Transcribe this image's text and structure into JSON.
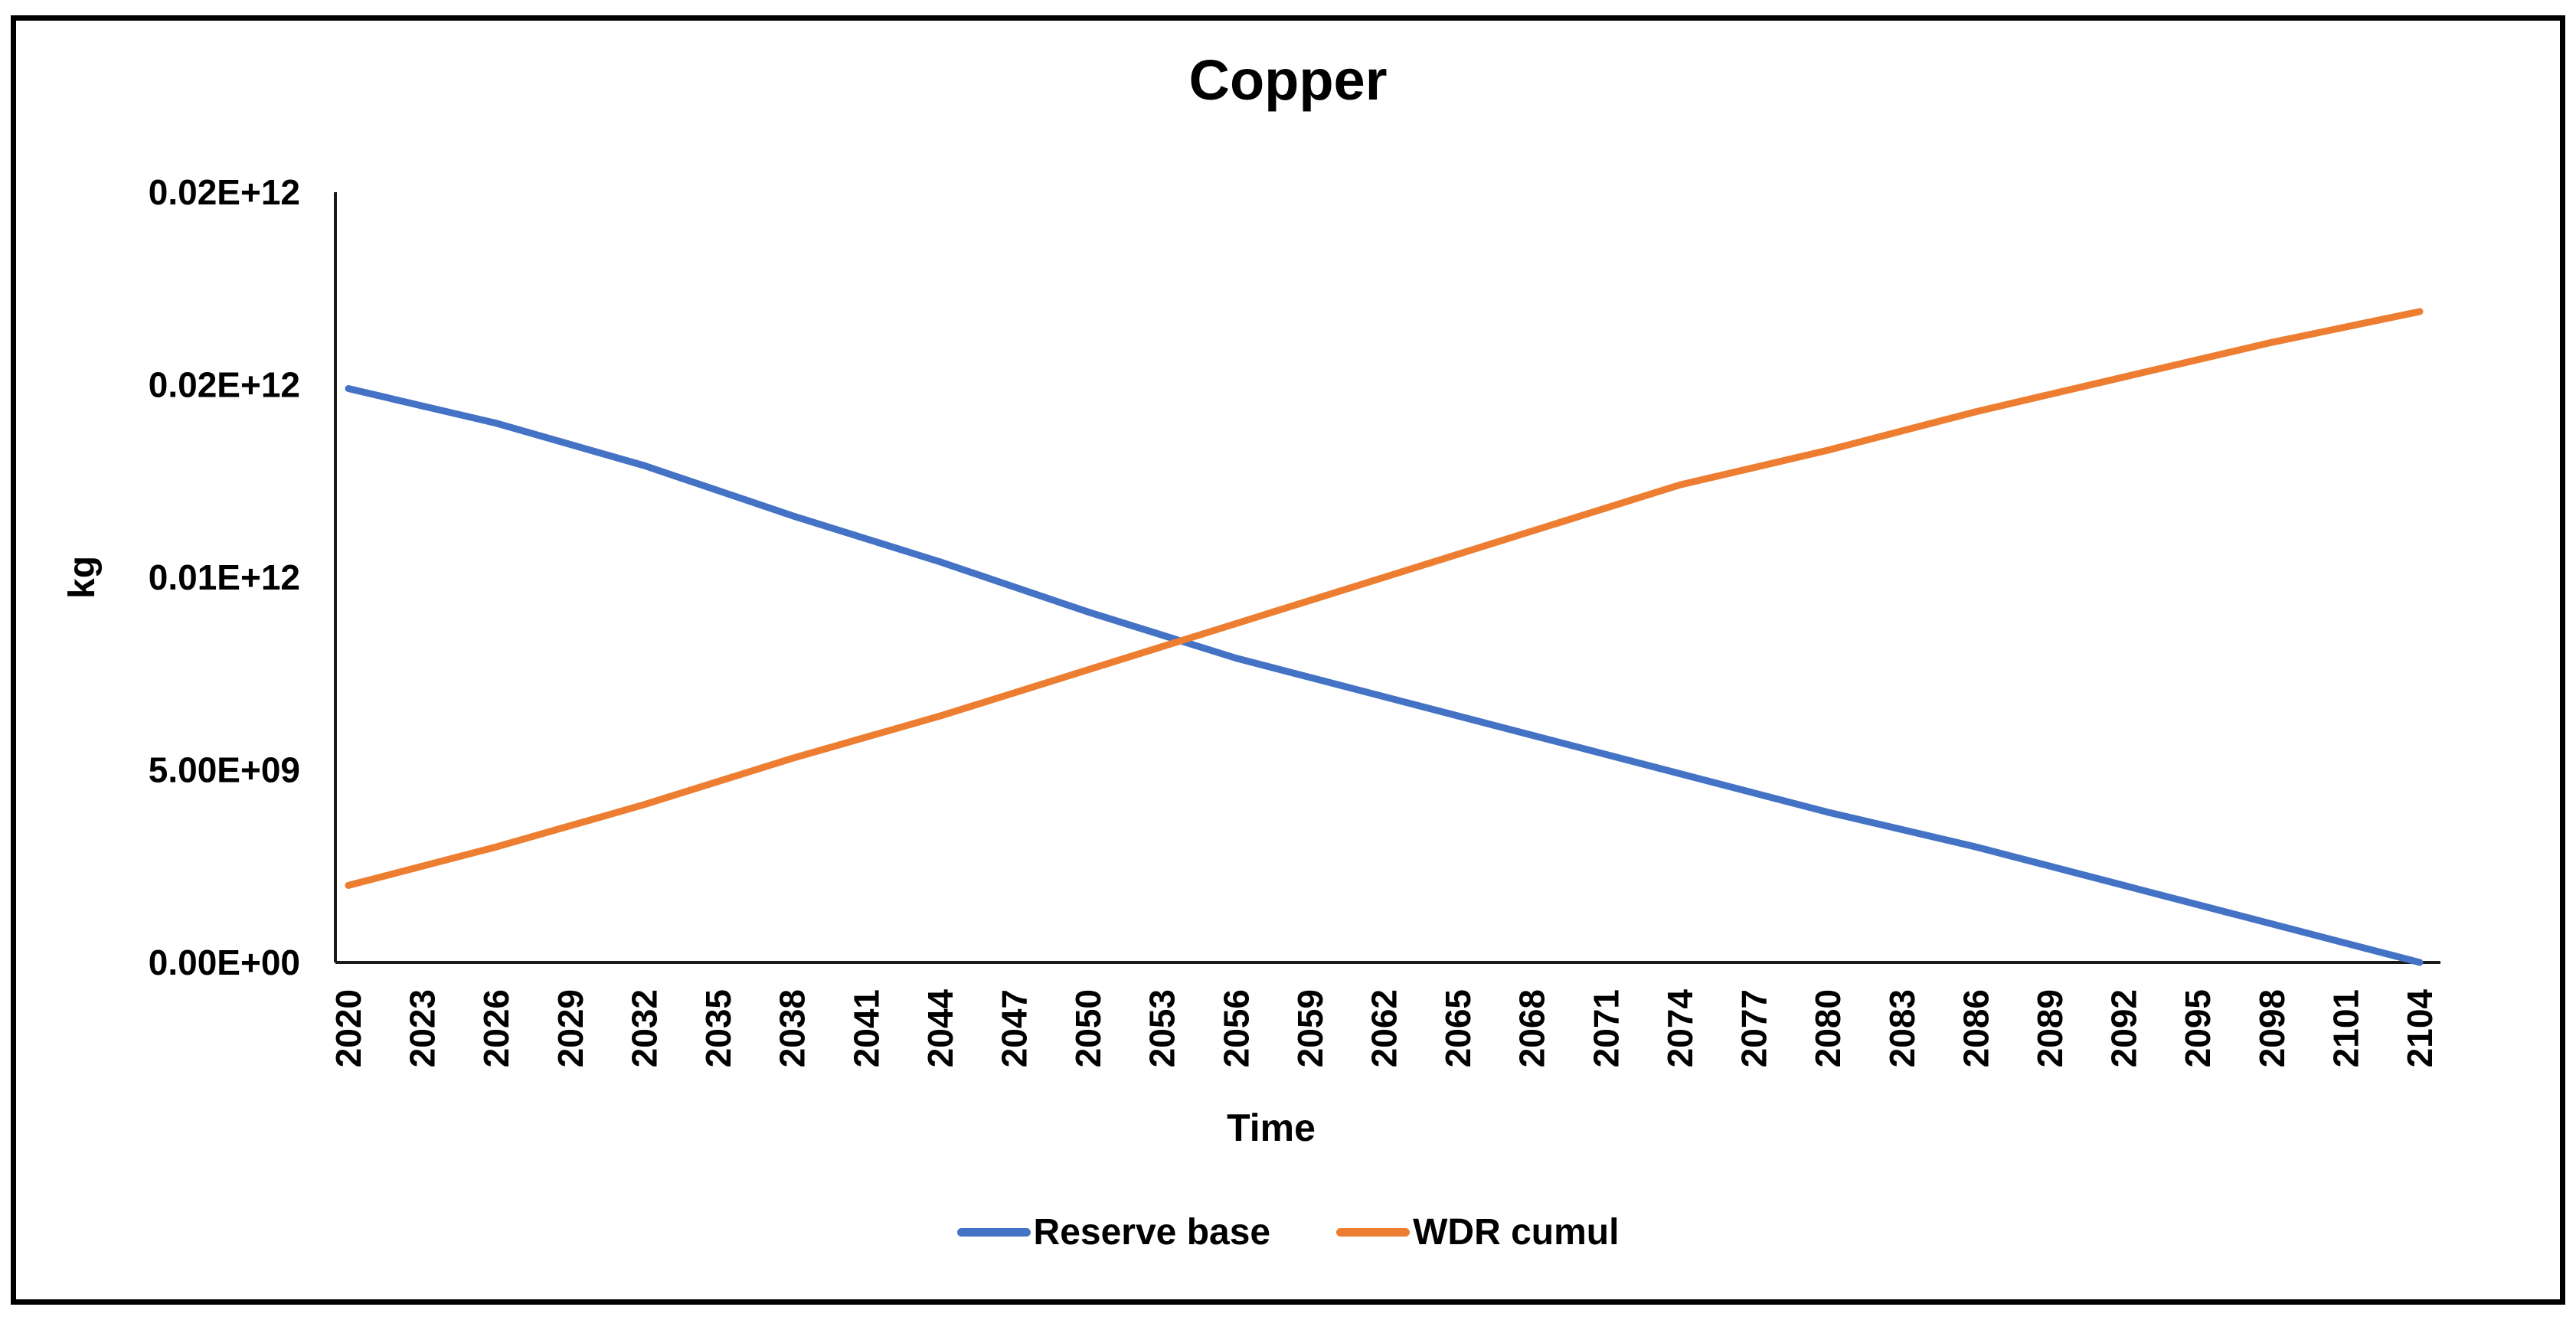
{
  "figure": {
    "title": "Copper"
  },
  "chart_data": {
    "type": "line",
    "title": "Copper",
    "xlabel": "Time",
    "ylabel": "kg",
    "unit": "kg",
    "grid": false,
    "legend_position": "bottom",
    "ylim": [
      0,
      20000000000.0
    ],
    "y_tick_labels": [
      "0.02E+12",
      "0.02E+12",
      "0.01E+12",
      "5.00E+09",
      "0.00E+00"
    ],
    "y_tick_values": [
      20000000000.0,
      15000000000.0,
      10000000000.0,
      5000000000.0,
      0
    ],
    "x_tick_labels": [
      "2020",
      "2023",
      "2026",
      "2029",
      "2032",
      "2035",
      "2038",
      "2041",
      "2044",
      "2047",
      "2050",
      "2053",
      "2056",
      "2059",
      "2062",
      "2065",
      "2068",
      "2071",
      "2074",
      "2077",
      "2080",
      "2083",
      "2086",
      "2089",
      "2092",
      "2095",
      "2098",
      "2101",
      "2104"
    ],
    "x_tick_interval_years": 3,
    "x_range": [
      2020,
      2104
    ],
    "x": [
      2020,
      2026,
      2032,
      2038,
      2044,
      2050,
      2056,
      2062,
      2068,
      2074,
      2080,
      2086,
      2092,
      2098,
      2104
    ],
    "series": [
      {
        "name": "Reserve base",
        "color": "#4472C4",
        "values": [
          14900000000.0,
          14000000000.0,
          12900000000.0,
          11600000000.0,
          10400000000.0,
          9100000000.0,
          7900000000.0,
          6900000000.0,
          5900000000.0,
          4900000000.0,
          3900000000.0,
          3000000000.0,
          2000000000.0,
          1000000000.0,
          0
        ]
      },
      {
        "name": "WDR cumul",
        "color": "#ED7D31",
        "values": [
          2000000000.0,
          3000000000.0,
          4100000000.0,
          5300000000.0,
          6400000000.0,
          7600000000.0,
          8800000000.0,
          10000000000.0,
          11200000000.0,
          12400000000.0,
          13300000000.0,
          14300000000.0,
          15200000000.0,
          16100000000.0,
          16900000000.0
        ]
      }
    ],
    "crossover_year_approx": 2054,
    "axis_color": "#1a1a1a",
    "text_color": "#000000"
  }
}
